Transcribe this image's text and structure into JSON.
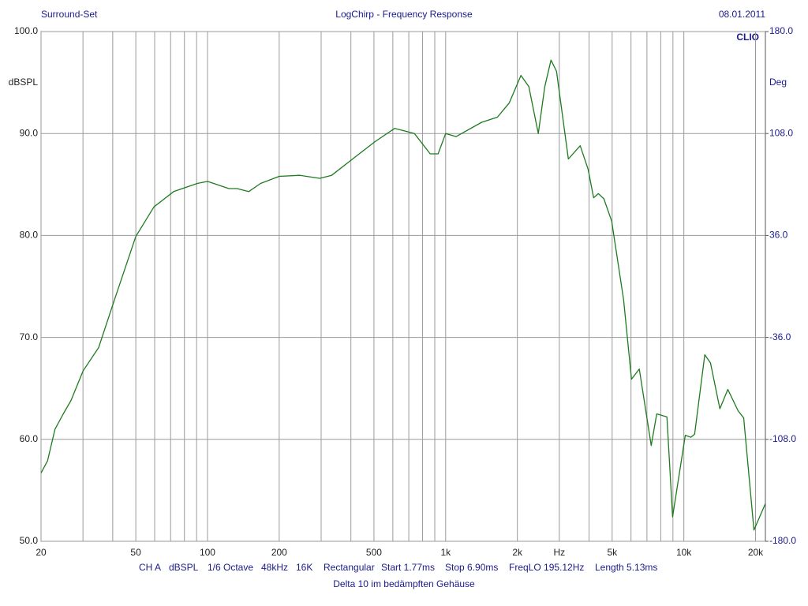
{
  "chart_data": {
    "type": "line",
    "title": "LogChirp - Frequency Response",
    "left_header": "Surround-Set",
    "date": "08.01.2011",
    "brand": "CLIO",
    "ylabel": "dBSPL",
    "y2label": "Deg",
    "log_x": true,
    "grid": true,
    "xlim": [
      20,
      22000
    ],
    "xticks": [
      20,
      50,
      100,
      200,
      500,
      {
        "value": 1000,
        "label": "1k"
      },
      {
        "value": 2000,
        "label": "2k"
      },
      {
        "value": 3000,
        "label": "Hz"
      },
      {
        "value": 5000,
        "label": "5k"
      },
      {
        "value": 10000,
        "label": "10k"
      },
      {
        "value": 20000,
        "label": "20k"
      }
    ],
    "x_minor_grid": [
      30,
      40,
      60,
      70,
      80,
      90,
      300,
      400,
      600,
      700,
      800,
      900,
      4000,
      6000,
      7000,
      8000,
      9000
    ],
    "ylim": [
      50,
      100
    ],
    "yticks": [
      {
        "value": 50,
        "label": "50.0"
      },
      {
        "value": 60,
        "label": "60.0"
      },
      {
        "value": 70,
        "label": "70.0"
      },
      {
        "value": 80,
        "label": "80.0"
      },
      {
        "value": 90,
        "label": "90.0"
      },
      {
        "value": 100,
        "label": "100.0"
      }
    ],
    "y2lim": [
      -180,
      180
    ],
    "y2ticks": [
      {
        "value": -180,
        "label": "-180.0"
      },
      {
        "value": -108,
        "label": "-108.0"
      },
      {
        "value": -36,
        "label": "-36.0"
      },
      {
        "value": 36,
        "label": "36.0"
      },
      {
        "value": 108,
        "label": "108.0"
      },
      {
        "value": 180,
        "label": "180.0"
      }
    ],
    "x": [
      20,
      21.3,
      22.9,
      24.8,
      26.7,
      30,
      34.9,
      40.7,
      50,
      59.6,
      72.1,
      90.6,
      100,
      123,
      133,
      149,
      167,
      200,
      244,
      296,
      332,
      417,
      505,
      611,
      739,
      861,
      929,
      1000,
      1107,
      1416,
      1649,
      1849,
      2071,
      2234,
      2449,
      2606,
      2768,
      2920,
      3274,
      3671,
      3963,
      4180,
      4376,
      4615,
      4978,
      5585,
      6028,
      6503,
      7297,
      7694,
      8493,
      8972,
      10140,
      10690,
      11100,
      12250,
      12940,
      14170,
      15300,
      16900,
      17830,
      19690,
      22000
    ],
    "series": [
      {
        "color": "#1f7a1f",
        "values": [
          56.7,
          57.9,
          61.0,
          62.5,
          63.8,
          66.7,
          69.0,
          73.7,
          79.9,
          82.8,
          84.3,
          85.1,
          85.3,
          84.6,
          84.6,
          84.3,
          85.1,
          85.8,
          85.9,
          85.6,
          85.9,
          87.7,
          89.2,
          90.5,
          90.0,
          88.0,
          88.0,
          90.0,
          89.7,
          91.1,
          91.6,
          93.0,
          95.7,
          94.6,
          90.0,
          94.6,
          97.2,
          96.1,
          87.5,
          88.8,
          86.5,
          83.7,
          84.1,
          83.6,
          81.4,
          73.7,
          65.9,
          66.9,
          59.4,
          62.5,
          62.2,
          52.4,
          60.4,
          60.2,
          60.5,
          68.3,
          67.5,
          63.0,
          64.9,
          62.8,
          62.1,
          51.1,
          53.7
        ]
      }
    ],
    "footer": [
      "CH A",
      "dBSPL",
      "1/6 Octave",
      "48kHz",
      "16K",
      "Rectangular",
      "Start 1.77ms",
      "Stop 6.90ms",
      "FreqLO 195.12Hz",
      "Length 5.13ms"
    ],
    "note": "Delta 10 im bedämpften Gehäuse"
  }
}
